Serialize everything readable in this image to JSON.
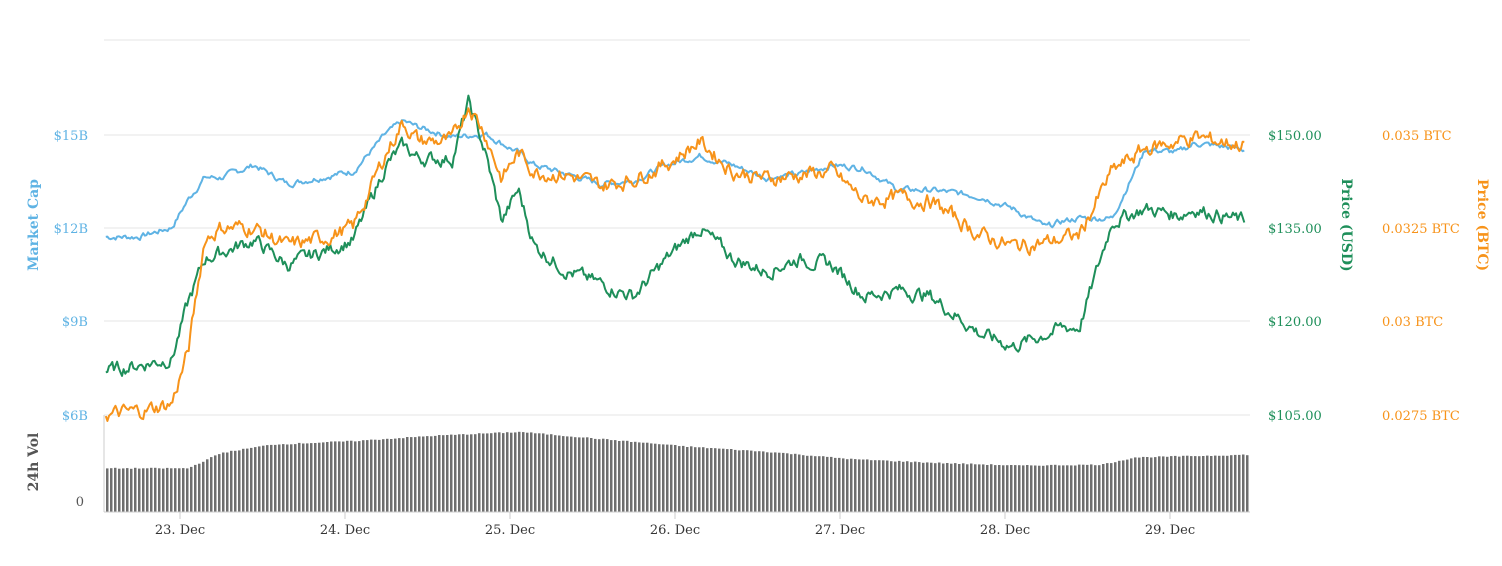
{
  "chart_data": {
    "type": "line",
    "x_labels": [
      "23. Dec",
      "24. Dec",
      "25. Dec",
      "26. Dec",
      "27. Dec",
      "28. Dec",
      "29. Dec"
    ],
    "axes": {
      "market_cap": {
        "title": "Market Cap",
        "ticks": [
          "$6B",
          "$9B",
          "$12B",
          "$15B"
        ],
        "range": [
          6,
          18
        ],
        "color": "#5fb3e4"
      },
      "price_usd": {
        "title": "Price (USD)",
        "ticks": [
          "$105.00",
          "$120.00",
          "$135.00",
          "$150.00"
        ],
        "range": [
          105,
          165
        ],
        "color": "#1e8f5a"
      },
      "price_btc": {
        "title": "Price (BTC)",
        "ticks": [
          "0.0275 BTC",
          "0.03 BTC",
          "0.0325 BTC",
          "0.035 BTC"
        ],
        "range": [
          0.0275,
          0.0375
        ],
        "color": "#f7931a"
      },
      "volume": {
        "title": "24h Vol",
        "ticks": [
          "0"
        ],
        "color": "#6e6e6e"
      }
    },
    "series": [
      {
        "axis": "market_cap",
        "x": [
          0,
          0.2,
          0.4,
          0.5,
          0.6,
          0.7,
          0.9,
          1.1,
          1.3,
          1.5,
          1.7,
          1.8,
          1.9,
          2.1,
          2.3,
          2.5,
          2.6,
          2.8,
          3.0,
          3.2,
          3.4,
          3.6,
          3.8,
          4.0,
          4.2,
          4.4,
          4.6,
          4.8,
          5.0,
          5.3,
          5.5,
          5.7,
          5.8,
          5.9,
          6.1,
          6.3,
          6.5,
          6.6,
          6.9
        ],
        "values": [
          11.7,
          11.7,
          12.0,
          12.9,
          13.6,
          13.6,
          14.0,
          13.4,
          13.6,
          13.8,
          15.0,
          15.4,
          15.2,
          14.9,
          15.0,
          14.4,
          14.0,
          13.7,
          13.4,
          13.5,
          14.0,
          14.3,
          14.0,
          13.6,
          13.7,
          14.0,
          13.9,
          13.2,
          13.2,
          13.0,
          12.6,
          12.0,
          12.2,
          12.3,
          12.3,
          14.5,
          14.4,
          14.7,
          14.5
        ]
      },
      {
        "axis": "price_usd",
        "x": [
          0,
          0.2,
          0.4,
          0.5,
          0.6,
          0.7,
          0.9,
          1.1,
          1.3,
          1.5,
          1.7,
          1.8,
          1.9,
          2.1,
          2.2,
          2.3,
          2.4,
          2.5,
          2.6,
          2.8,
          3.0,
          3.2,
          3.4,
          3.6,
          3.8,
          4.0,
          4.2,
          4.4,
          4.6,
          4.8,
          5.0,
          5.3,
          5.5,
          5.7,
          5.8,
          5.9,
          6.1,
          6.3,
          6.5,
          6.6,
          6.9
        ],
        "values": [
          112.0,
          113.0,
          114.0,
          123.0,
          130.0,
          131.0,
          133.0,
          129.0,
          131.0,
          133.0,
          145.0,
          148.0,
          146.0,
          146.0,
          155.0,
          147.0,
          136.0,
          141.0,
          132.0,
          128.0,
          126.0,
          124.0,
          130.0,
          135.0,
          130.0,
          128.0,
          130.0,
          129.0,
          124.0,
          125.0,
          124.0,
          118.0,
          116.0,
          118.0,
          119.0,
          119.0,
          136.0,
          138.0,
          137.0,
          138.0,
          136.0
        ]
      },
      {
        "axis": "price_btc",
        "x": [
          0,
          0.2,
          0.4,
          0.5,
          0.6,
          0.7,
          0.9,
          1.1,
          1.3,
          1.5,
          1.7,
          1.8,
          1.9,
          2.1,
          2.2,
          2.3,
          2.4,
          2.5,
          2.6,
          2.8,
          3.0,
          3.2,
          3.4,
          3.6,
          3.8,
          4.0,
          4.2,
          4.4,
          4.6,
          4.8,
          5.0,
          5.3,
          5.5,
          5.7,
          5.8,
          5.9,
          6.1,
          6.3,
          6.5,
          6.6,
          6.9
        ],
        "values": [
          0.0275,
          0.0276,
          0.0278,
          0.0292,
          0.0322,
          0.0325,
          0.0325,
          0.032,
          0.0322,
          0.0325,
          0.0345,
          0.0353,
          0.0348,
          0.0348,
          0.0358,
          0.035,
          0.0338,
          0.0345,
          0.034,
          0.0339,
          0.0336,
          0.0338,
          0.0342,
          0.0348,
          0.034,
          0.0338,
          0.0339,
          0.034,
          0.0332,
          0.0333,
          0.0332,
          0.0323,
          0.032,
          0.0321,
          0.0322,
          0.0323,
          0.034,
          0.0346,
          0.0348,
          0.0349,
          0.0347
        ]
      },
      {
        "axis": "volume",
        "x": [
          0,
          0.5,
          0.7,
          1.0,
          1.5,
          2.0,
          2.5,
          3.0,
          3.5,
          4.0,
          4.5,
          5.0,
          5.5,
          6.0,
          6.2,
          6.9
        ],
        "values": [
          0.48,
          0.48,
          0.65,
          0.74,
          0.78,
          0.84,
          0.88,
          0.8,
          0.72,
          0.66,
          0.58,
          0.54,
          0.51,
          0.52,
          0.6,
          0.63
        ]
      }
    ],
    "grid": true
  }
}
